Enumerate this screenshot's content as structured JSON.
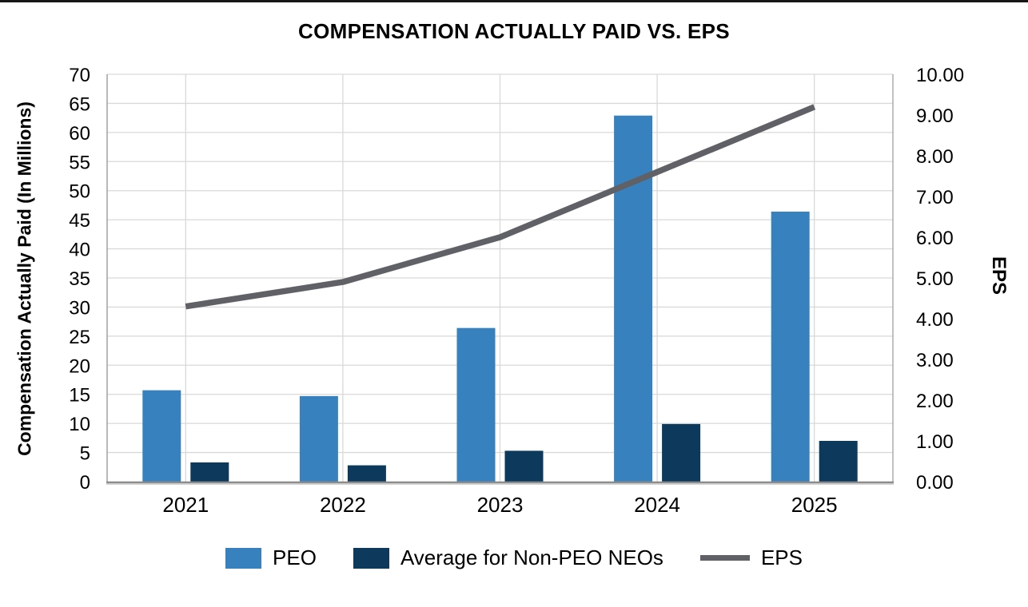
{
  "title": "COMPENSATION ACTUALLY PAID VS. EPS",
  "chart_data": {
    "type": "combo",
    "categories": [
      "2021",
      "2022",
      "2023",
      "2024",
      "2025"
    ],
    "series": [
      {
        "name": "PEO",
        "type": "bar",
        "axis": "left",
        "color": "#3782BE",
        "values": [
          15.7,
          14.7,
          26.4,
          62.9,
          46.4
        ]
      },
      {
        "name": "Average for Non-PEO NEOs",
        "type": "bar",
        "axis": "left",
        "color": "#0D3A5C",
        "values": [
          3.3,
          2.8,
          5.3,
          9.9,
          7.0
        ]
      },
      {
        "name": "EPS",
        "type": "line",
        "axis": "right",
        "color": "#5F6166",
        "values": [
          4.3,
          4.9,
          6.0,
          7.6,
          9.2
        ]
      }
    ],
    "left_axis": {
      "label": "Compensation Actually Paid (In Millions)",
      "min": 0,
      "max": 70,
      "step": 5,
      "ticks": [
        "0",
        "5",
        "10",
        "15",
        "20",
        "25",
        "30",
        "35",
        "40",
        "45",
        "50",
        "55",
        "60",
        "65",
        "70"
      ]
    },
    "right_axis": {
      "label": "EPS",
      "min": 0,
      "max": 10,
      "step": 1,
      "ticks": [
        "0.00",
        "1.00",
        "2.00",
        "3.00",
        "4.00",
        "5.00",
        "6.00",
        "7.00",
        "8.00",
        "9.00",
        "10.00"
      ]
    },
    "grid": {
      "horizontal": true,
      "vertical_at_category_centers": true,
      "color": "#D9D9D9"
    },
    "legend_position": "bottom"
  },
  "colors": {
    "axis_line": "#8C8C8C",
    "axis_line_light": "#D2D2D2",
    "plot_border": "#A0A0A0",
    "gridline": "#D9D9D9"
  }
}
